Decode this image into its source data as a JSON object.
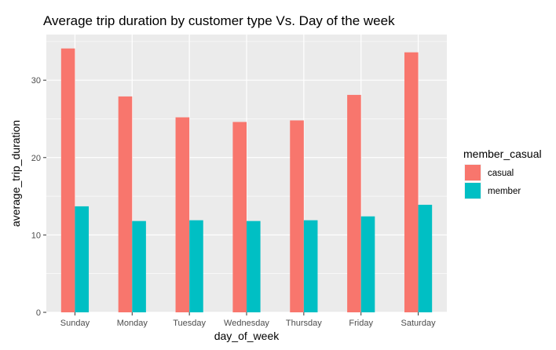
{
  "chart_data": {
    "type": "bar",
    "title": "Average trip duration by customer type Vs. Day of the week",
    "xlabel": "day_of_week",
    "ylabel": "average_trip_duration",
    "categories": [
      "Sunday",
      "Monday",
      "Tuesday",
      "Wednesday",
      "Thursday",
      "Friday",
      "Saturday"
    ],
    "series": [
      {
        "name": "casual",
        "color": "#F8766D",
        "values": [
          34.1,
          27.9,
          25.2,
          24.6,
          24.8,
          28.1,
          33.6
        ]
      },
      {
        "name": "member",
        "color": "#00BFC4",
        "values": [
          13.7,
          11.8,
          11.9,
          11.8,
          11.9,
          12.4,
          13.9
        ]
      }
    ],
    "ylim": [
      0,
      35.9
    ],
    "yticks": [
      0,
      10,
      20,
      30
    ],
    "grid": true,
    "panel_background": "#EBEBEB",
    "legend": {
      "title": "member_casual",
      "position": "right"
    }
  }
}
